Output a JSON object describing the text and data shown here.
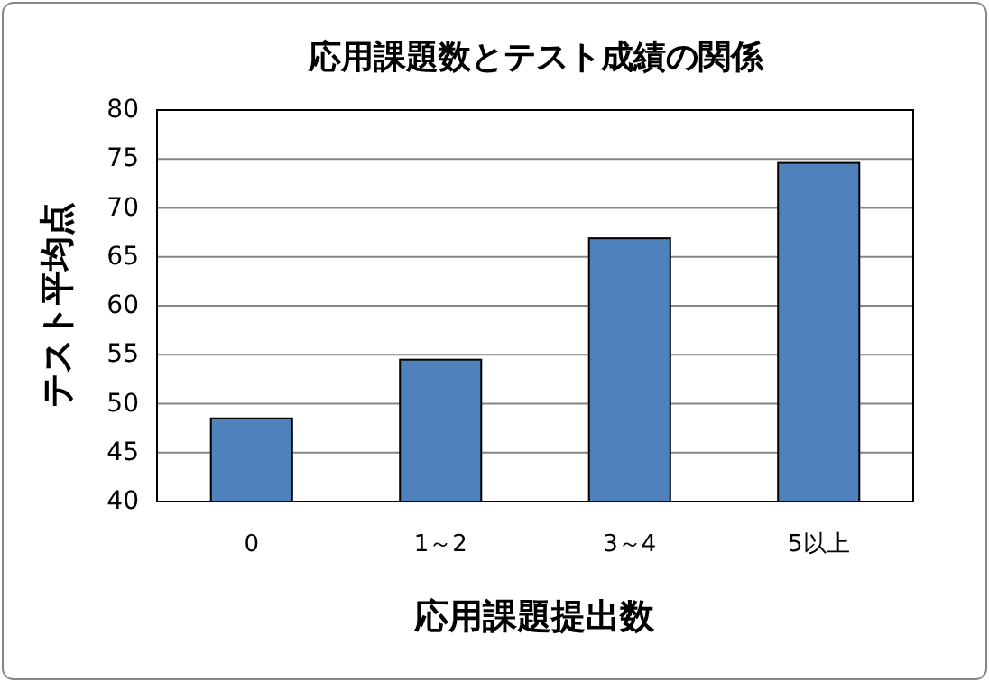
{
  "chart_data": {
    "type": "bar",
    "title": "応用課題数とテスト成績の関係",
    "xlabel": "応用課題提出数",
    "ylabel": "テスト平均点",
    "categories": [
      "0",
      "1～2",
      "3～4",
      "5以上"
    ],
    "values": [
      48.5,
      54.5,
      66.9,
      74.6
    ],
    "color": "#4f81bd",
    "ylim": [
      40,
      80
    ],
    "yticks": [
      40,
      45,
      50,
      55,
      60,
      65,
      70,
      75,
      80
    ],
    "grid": "y"
  }
}
